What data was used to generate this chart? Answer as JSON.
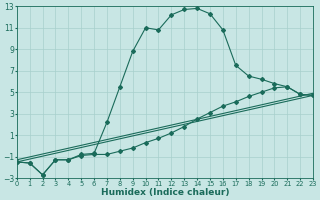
{
  "xlabel": "Humidex (Indice chaleur)",
  "bg_color": "#c8e6e4",
  "grid_color": "#a8d0cc",
  "line_color": "#1a6b5a",
  "xlim": [
    0,
    23
  ],
  "ylim": [
    -3,
    13
  ],
  "xticks": [
    0,
    1,
    2,
    3,
    4,
    5,
    6,
    7,
    8,
    9,
    10,
    11,
    12,
    13,
    14,
    15,
    16,
    17,
    18,
    19,
    20,
    21,
    22,
    23
  ],
  "yticks": [
    -3,
    -1,
    1,
    3,
    5,
    7,
    9,
    11,
    13
  ],
  "curve1_x": [
    0,
    1,
    2,
    3,
    4,
    5,
    6,
    7,
    8,
    9,
    10,
    11,
    12,
    13,
    14,
    15,
    16,
    17,
    18,
    19,
    20,
    21,
    22,
    23
  ],
  "curve1_y": [
    -1.5,
    -1.6,
    -2.7,
    -1.3,
    -1.3,
    -0.8,
    -0.7,
    2.2,
    5.5,
    8.8,
    11.0,
    10.8,
    12.2,
    12.7,
    12.8,
    12.3,
    10.8,
    7.5,
    6.5,
    6.2,
    5.8,
    5.5,
    4.8,
    4.7
  ],
  "curve2_x": [
    0,
    1,
    2,
    3,
    4,
    5,
    6,
    7,
    8,
    9,
    10,
    11,
    12,
    13,
    14,
    15,
    16,
    17,
    18,
    19,
    20,
    21,
    22,
    23
  ],
  "curve2_y": [
    -1.5,
    -1.6,
    -2.7,
    -1.3,
    -1.3,
    -0.9,
    -0.8,
    -0.8,
    -0.5,
    -0.2,
    0.3,
    0.7,
    1.2,
    1.8,
    2.5,
    3.1,
    3.7,
    4.1,
    4.6,
    5.0,
    5.4,
    5.5,
    4.8,
    4.7
  ],
  "line1_x": [
    0,
    23
  ],
  "line1_y": [
    -1.5,
    4.7
  ],
  "line2_x": [
    0,
    23
  ],
  "line2_y": [
    -1.3,
    4.9
  ]
}
